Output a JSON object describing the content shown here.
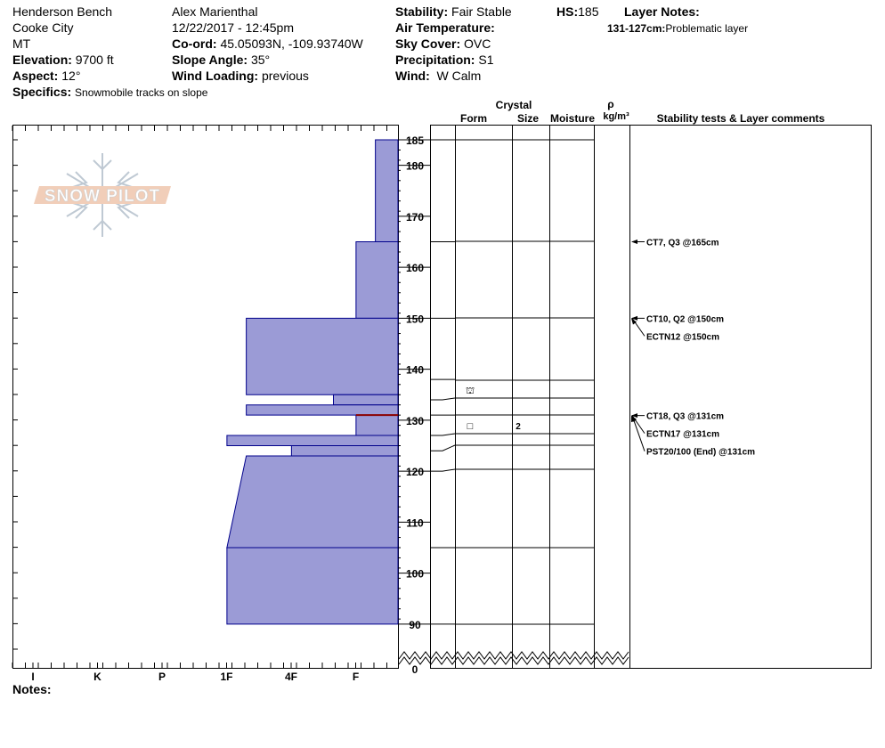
{
  "header": {
    "location": "Henderson Bench",
    "range": "Cooke City",
    "state": "MT",
    "elevation_label": "Elevation:",
    "elevation": "9700 ft",
    "aspect_label": "Aspect:",
    "aspect": "12°",
    "specifics_label": "Specifics:",
    "specifics": "Snowmobile tracks on slope",
    "observer": "Alex Marienthal",
    "datetime": "12/22/2017 - 12:45pm",
    "coord_label": "Co-ord:",
    "coord": "45.05093N, -109.93740W",
    "slope_label": "Slope Angle:",
    "slope": "35°",
    "wind_loading_label": "Wind Loading:",
    "wind_loading": "previous",
    "stability_label": "Stability:",
    "stability": "Fair Stable",
    "air_temp_label": "Air Temperature:",
    "sky_label": "Sky Cover:",
    "sky": "OVC",
    "precip_label": "Precipitation:",
    "precip": "S1",
    "wind_label": "Wind:",
    "wind": "W Calm",
    "hs_label": "HS:",
    "hs": "185",
    "layer_notes_label": "Layer Notes:",
    "layer_note_range": "131-127cm:",
    "layer_note_text": "Problematic layer"
  },
  "columns": {
    "crystal": "Crystal",
    "form": "Form",
    "size": "Size",
    "moisture": "Moisture",
    "rho": "ρ",
    "density_unit": "kg/m³",
    "comments": "Stability tests & Layer comments"
  },
  "logo_text": "SNOW PILOT",
  "notes_label": "Notes:",
  "colors": {
    "layer_fill": "#9b9bd6",
    "layer_stroke": "#00008b",
    "weak_layer": "#8b0000"
  },
  "chart_data": {
    "type": "snow-profile",
    "hardness_scale": [
      "I",
      "K",
      "P",
      "1F",
      "4F",
      "F"
    ],
    "depth_ticks": [
      185,
      180,
      170,
      160,
      150,
      140,
      130,
      120,
      110,
      100,
      90,
      0
    ],
    "layers": [
      {
        "top": 185,
        "bottom": 165,
        "hardness": 0.35
      },
      {
        "top": 165,
        "bottom": 150,
        "hardness": 0.65
      },
      {
        "top": 150,
        "bottom": 135,
        "hardness": 2.35
      },
      {
        "top": 135,
        "bottom": 133,
        "hardness": 1.0
      },
      {
        "top": 133,
        "bottom": 131,
        "hardness": 2.35
      },
      {
        "top": 131,
        "bottom": 127,
        "hardness": 0.65
      },
      {
        "top": 127,
        "bottom": 125,
        "hardness": 2.65
      },
      {
        "top": 125,
        "bottom": 123,
        "hardness": 1.65
      },
      {
        "top": 123,
        "bottom": 105,
        "hardness_top": 2.35,
        "hardness_bottom": 2.65
      },
      {
        "top": 105,
        "bottom": 90,
        "hardness": 2.65
      }
    ],
    "weak_layer_depth": 131,
    "layer_boundaries": [
      185,
      165,
      150,
      138,
      134,
      131,
      127,
      124,
      120,
      105,
      90
    ],
    "symbols": [
      {
        "depth": 136,
        "form": "⛫",
        "size": ""
      },
      {
        "depth": 129,
        "form": "□",
        "size": "2"
      }
    ],
    "tests": [
      {
        "depth": 165,
        "label": "CT7, Q3 @165cm"
      },
      {
        "depth": 150,
        "label": "CT10, Q2 @150cm"
      },
      {
        "depth": 150,
        "label": "ECTN12 @150cm",
        "offset": 1
      },
      {
        "depth": 131,
        "label": "CT18, Q3 @131cm"
      },
      {
        "depth": 131,
        "label": "ECTN17 @131cm",
        "offset": 1
      },
      {
        "depth": 131,
        "label": "PST20/100 (End) @131cm",
        "offset": 2
      }
    ]
  }
}
